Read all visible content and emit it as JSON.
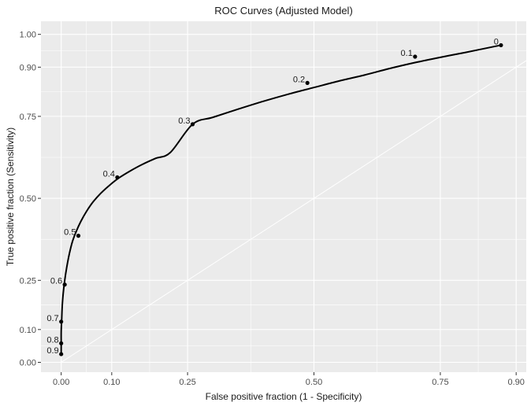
{
  "chart_data": {
    "type": "line",
    "title": "ROC Curves (Adjusted Model)",
    "xlabel": "False positive fraction (1 - Specificity)",
    "ylabel": "True positive fraction (Sensitivity)",
    "x_ticks": [
      0.0,
      0.1,
      0.25,
      0.5,
      0.75,
      0.9
    ],
    "x_tick_labels": [
      "0.00",
      "0.10",
      "0.25",
      "0.50",
      "0.75",
      "0.90"
    ],
    "y_ticks": [
      0.0,
      0.1,
      0.25,
      0.5,
      0.75,
      0.9,
      1.0
    ],
    "y_tick_labels": [
      "0.00",
      "0.10",
      "0.25",
      "0.50",
      "0.75",
      "0.90",
      "1.00"
    ],
    "xlim": [
      -0.04,
      0.92
    ],
    "ylim": [
      -0.03,
      1.04
    ],
    "grid": true,
    "background": "#ebebeb",
    "line_color": "#000000",
    "reference_line": {
      "x": [
        0,
        1
      ],
      "y": [
        0,
        1
      ],
      "color": "#ffffff"
    },
    "curve": {
      "x": [
        0.0,
        0.0,
        0.0,
        0.001,
        0.002,
        0.004,
        0.007,
        0.011,
        0.016,
        0.022,
        0.03,
        0.039,
        0.05,
        0.063,
        0.078,
        0.095,
        0.114,
        0.136,
        0.16,
        0.187,
        0.216,
        0.26,
        0.3,
        0.35,
        0.4,
        0.45,
        0.5,
        0.55,
        0.6,
        0.65,
        0.7,
        0.75,
        0.8,
        0.86,
        0.87
      ],
      "y": [
        0.025,
        0.058,
        0.095,
        0.13,
        0.17,
        0.21,
        0.25,
        0.29,
        0.33,
        0.367,
        0.4,
        0.43,
        0.46,
        0.489,
        0.515,
        0.539,
        0.562,
        0.583,
        0.603,
        0.622,
        0.64,
        0.726,
        0.747,
        0.772,
        0.796,
        0.818,
        0.838,
        0.858,
        0.876,
        0.896,
        0.914,
        0.93,
        0.945,
        0.964,
        0.967
      ]
    },
    "threshold_points": [
      {
        "label": "0.9",
        "x": 0.0,
        "y": 0.025
      },
      {
        "label": "0.8",
        "x": 0.0,
        "y": 0.058
      },
      {
        "label": "0.7",
        "x": 0.0,
        "y": 0.124
      },
      {
        "label": "0.6",
        "x": 0.007,
        "y": 0.237
      },
      {
        "label": "0.5",
        "x": 0.034,
        "y": 0.386
      },
      {
        "label": "0.4",
        "x": 0.111,
        "y": 0.564
      },
      {
        "label": "0.3",
        "x": 0.26,
        "y": 0.726
      },
      {
        "label": "0.2",
        "x": 0.487,
        "y": 0.852
      },
      {
        "label": "0.1",
        "x": 0.7,
        "y": 0.932
      },
      {
        "label": "0",
        "x": 0.87,
        "y": 0.967
      }
    ]
  }
}
